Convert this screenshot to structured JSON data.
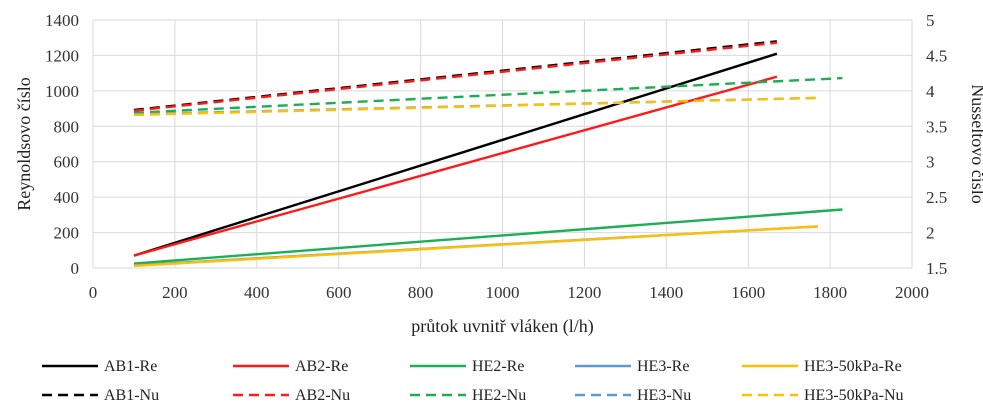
{
  "chart_data": {
    "type": "line",
    "title": "",
    "xlabel": "průtok uvnitř vláken (l/h)",
    "ylabel_left": "Reynoldsovo číslo",
    "ylabel_right": "Nusseltovo číslo",
    "xlim": [
      0,
      2000
    ],
    "xticks": [
      "0",
      "200",
      "400",
      "600",
      "800",
      "1000",
      "1200",
      "1400",
      "1600",
      "1800",
      "2000"
    ],
    "ylim_left": [
      0,
      1400
    ],
    "yticks_left": [
      "0",
      "200",
      "400",
      "600",
      "800",
      "1000",
      "1200",
      "1400"
    ],
    "ylim_right": [
      1.5,
      5
    ],
    "yticks_right": [
      "1.5",
      "2",
      "2.5",
      "3",
      "3.5",
      "4",
      "4.5",
      "5"
    ],
    "grid": true,
    "legend_position": "bottom",
    "series": [
      {
        "name": "AB1-Re",
        "axis": "left",
        "style": "solid",
        "color": "#000000",
        "x": [
          100,
          1670
        ],
        "y": [
          70,
          1210
        ]
      },
      {
        "name": "AB2-Re",
        "axis": "left",
        "style": "solid",
        "color": "#ff1a1a",
        "x": [
          100,
          1670
        ],
        "y": [
          70,
          1080
        ]
      },
      {
        "name": "HE2-Re",
        "axis": "left",
        "style": "solid",
        "color": "#1aaf55",
        "x": [
          100,
          1830
        ],
        "y": [
          25,
          330
        ]
      },
      {
        "name": "HE3-Re",
        "axis": "left",
        "style": "solid",
        "color": "#5b9bd5",
        "x": [
          100,
          1770
        ],
        "y": [
          15,
          235
        ]
      },
      {
        "name": "HE3-50kPa-Re",
        "axis": "left",
        "style": "solid",
        "color": "#ffc000",
        "x": [
          100,
          1770
        ],
        "y": [
          12,
          235
        ]
      },
      {
        "name": "AB1-Nu",
        "axis": "right",
        "style": "dashed",
        "color": "#000000",
        "x": [
          100,
          1670
        ],
        "y": [
          3.73,
          4.7
        ]
      },
      {
        "name": "AB2-Nu",
        "axis": "right",
        "style": "dashed",
        "color": "#ff1a1a",
        "x": [
          100,
          1670
        ],
        "y": [
          3.72,
          4.68
        ]
      },
      {
        "name": "HE2-Nu",
        "axis": "right",
        "style": "dashed",
        "color": "#1aaf55",
        "x": [
          100,
          1830
        ],
        "y": [
          3.69,
          4.18
        ]
      },
      {
        "name": "HE3-Nu",
        "axis": "right",
        "style": "dashed",
        "color": "#5b9bd5",
        "x": [
          100,
          1770
        ],
        "y": [
          3.67,
          3.9
        ]
      },
      {
        "name": "HE3-50kPa-Nu",
        "axis": "right",
        "style": "dashed",
        "color": "#ffc000",
        "x": [
          100,
          1770
        ],
        "y": [
          3.66,
          3.9
        ]
      }
    ]
  }
}
